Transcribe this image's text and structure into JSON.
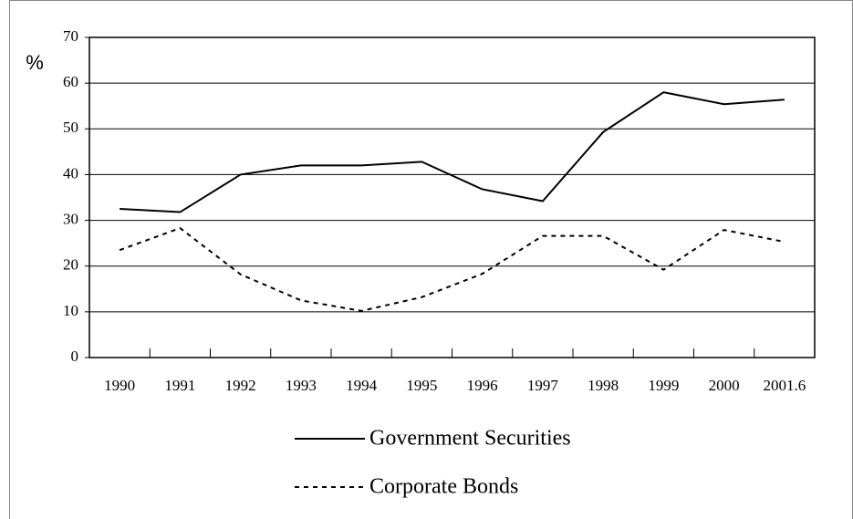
{
  "chart_data": {
    "type": "line",
    "y_label": "%",
    "categories": [
      "1990",
      "1991",
      "1992",
      "1993",
      "1994",
      "1995",
      "1996",
      "1997",
      "1998",
      "1999",
      "2000",
      "2001.6"
    ],
    "series": [
      {
        "name": "Government Securities",
        "color": "#000000",
        "dash": "solid",
        "values": [
          32.5,
          31.8,
          40,
          42,
          42,
          42.8,
          36.8,
          34.2,
          49.3,
          58,
          55.4,
          56.4
        ]
      },
      {
        "name": "Corporate Bonds",
        "color": "#000000",
        "dash": "dashed",
        "values": [
          23.5,
          28.3,
          18.2,
          12.5,
          10.2,
          13.2,
          18.3,
          26.6,
          26.6,
          19.2,
          27.9,
          25.3
        ]
      }
    ],
    "ylim": [
      0,
      70
    ],
    "yticks": [
      0,
      10,
      20,
      30,
      40,
      50,
      60,
      70
    ],
    "grid": true
  }
}
